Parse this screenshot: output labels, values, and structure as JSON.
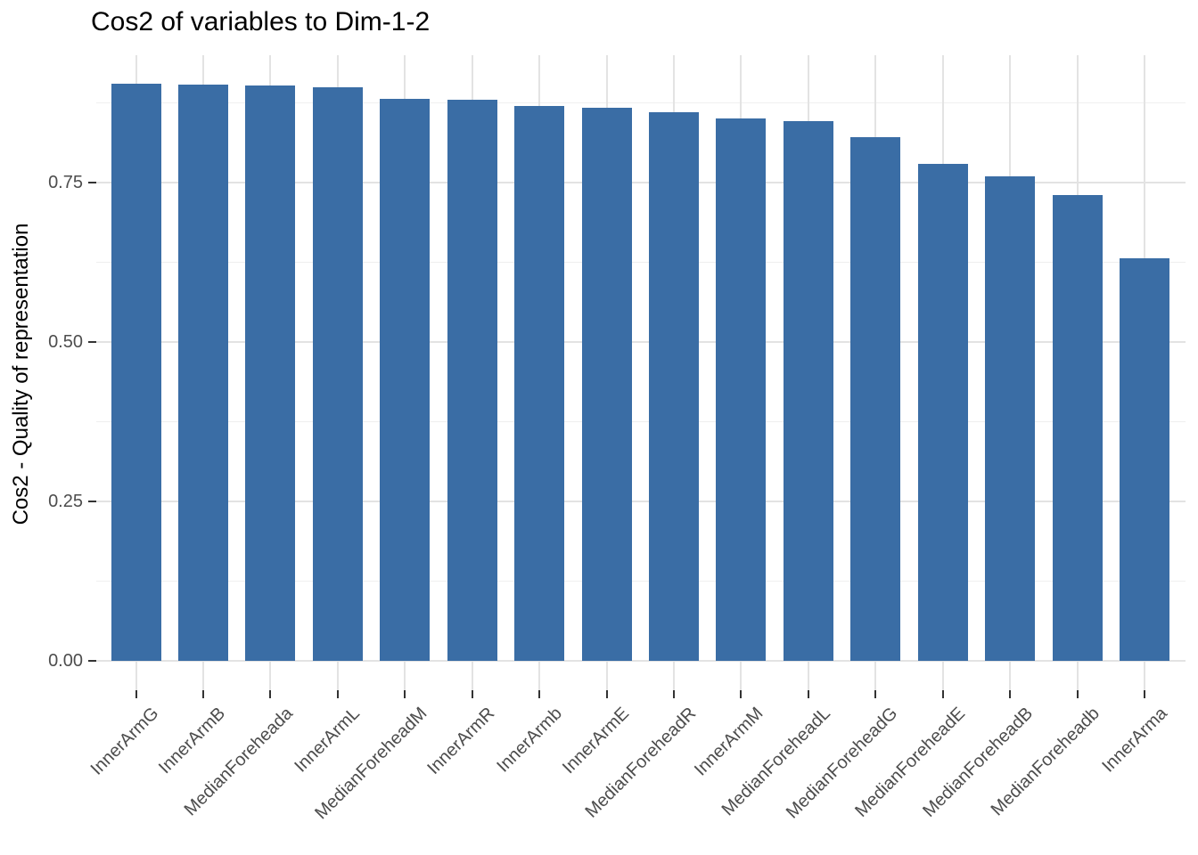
{
  "chart_data": {
    "type": "bar",
    "title": "Cos2 of variables to Dim-1-2",
    "xlabel": "",
    "ylabel": "Cos2 - Quality of representation",
    "categories": [
      "InnerArmG",
      "InnerArmB",
      "MedianForeheada",
      "InnerArmL",
      "MedianForeheadM",
      "InnerArmR",
      "InnerArmb",
      "InnerArmE",
      "MedianForeheadR",
      "InnerArmM",
      "MedianForeheadL",
      "MedianForeheadG",
      "MedianForeheadE",
      "MedianForeheadB",
      "MedianForeheadb",
      "InnerArma"
    ],
    "values": [
      0.905,
      0.904,
      0.902,
      0.899,
      0.881,
      0.88,
      0.87,
      0.868,
      0.861,
      0.851,
      0.847,
      0.821,
      0.779,
      0.76,
      0.73,
      0.631
    ],
    "ylim": [
      -0.046,
      0.949
    ],
    "yticks": [
      0.0,
      0.25,
      0.5,
      0.75
    ],
    "ytick_labels": [
      "0.00",
      "0.25",
      "0.50",
      "0.75"
    ],
    "minor_gridlines": [
      0.125,
      0.375,
      0.625,
      0.875
    ],
    "grid": "major-and-minor",
    "legend": "none",
    "x_tick_angle": 45,
    "colors": {
      "bar_fill": "#3A6DA5",
      "grid_major": "#E3E3E3",
      "grid_minor": "#EFEFEF",
      "tick_mark": "#333333",
      "axis_text": "#4D4D4D",
      "title_text": "#000000",
      "background": "#FFFFFF"
    }
  }
}
